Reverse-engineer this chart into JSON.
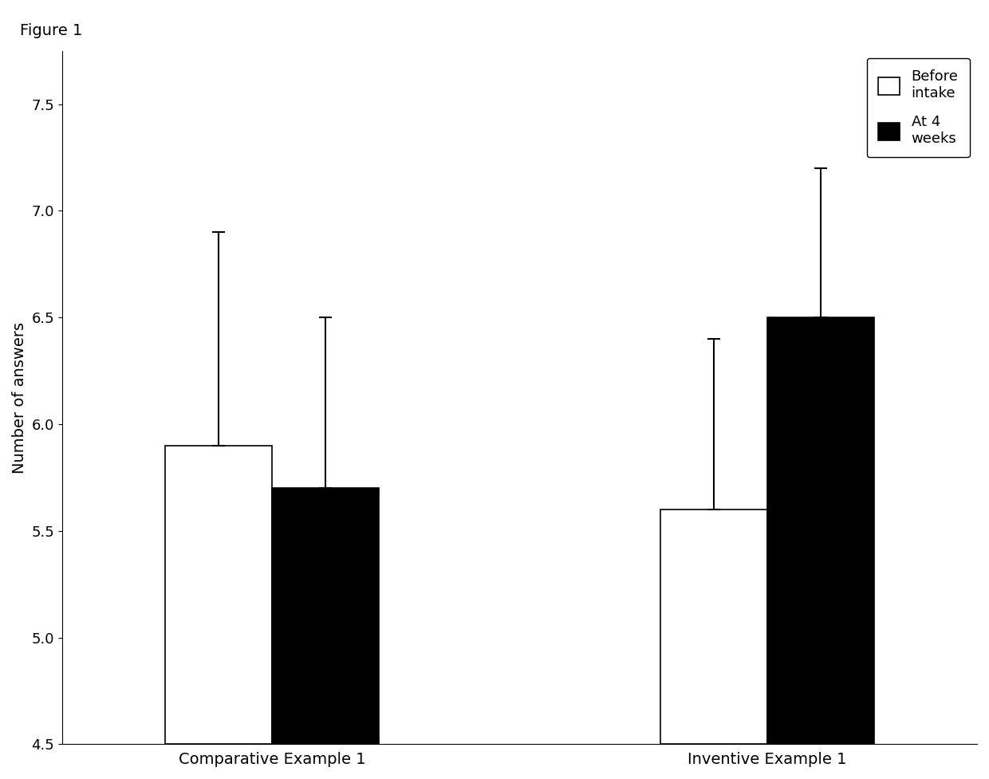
{
  "groups": [
    "Comparative Example 1",
    "Inventive Example 1"
  ],
  "before_intake_values": [
    5.9,
    5.6
  ],
  "at_4_weeks_values": [
    5.7,
    6.5
  ],
  "before_intake_upper": [
    6.9,
    6.4
  ],
  "at_4_weeks_upper": [
    6.5,
    7.2
  ],
  "ylabel": "Number of answers",
  "ylim": [
    4.5,
    7.75
  ],
  "yticks": [
    4.5,
    5.0,
    5.5,
    6.0,
    6.5,
    7.0,
    7.5
  ],
  "figure_label": "Figure 1",
  "legend_labels": [
    "Before\nintake",
    "At 4\nweeks"
  ],
  "bar_width": 0.28,
  "group_centers": [
    1.0,
    2.3
  ],
  "xlim": [
    0.45,
    2.85
  ],
  "background_color": "#ffffff",
  "bar_edge_color": "#000000",
  "before_intake_color": "#ffffff",
  "at_4_weeks_color": "#000000",
  "title_fontsize": 14,
  "axis_fontsize": 14,
  "tick_fontsize": 13,
  "legend_fontsize": 13,
  "bar_bottom": 4.5
}
